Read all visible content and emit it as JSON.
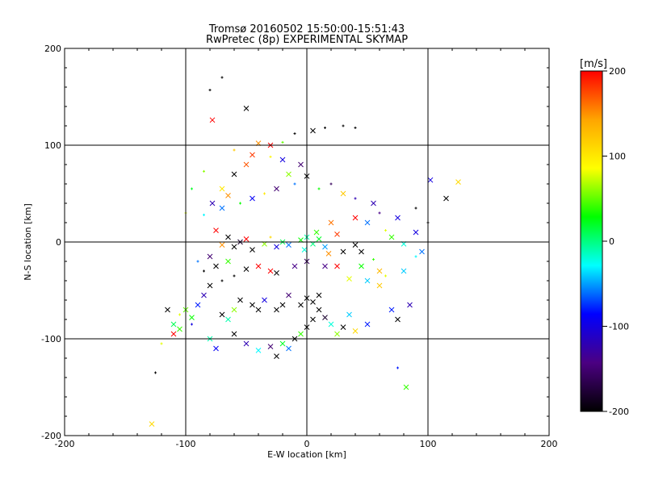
{
  "chart_data": {
    "type": "scatter",
    "title": "Tromsø 20160502 15:50:00-15:51:43",
    "subtitle": "RwPretec (8p) EXPERIMENTAL SKYMAP",
    "xlabel": "E-W location [km]",
    "ylabel": "N-S location [km]",
    "xlim": [
      -200,
      200
    ],
    "ylim": [
      -200,
      200
    ],
    "x_ticks": [
      "-200",
      "-100",
      "0",
      "100",
      "200"
    ],
    "y_ticks": [
      "-200",
      "-100",
      "0",
      "100",
      "200"
    ],
    "grid": true,
    "colorbar": {
      "label": "[m/s]",
      "range": [
        -200,
        200
      ],
      "ticks": [
        "200",
        "100",
        "0",
        "-100",
        "-200"
      ],
      "colors": [
        "#000000",
        "#4b0082",
        "#0000ff",
        "#00ffff",
        "#00ff00",
        "#ffff00",
        "#ffa500",
        "#ff0000"
      ]
    },
    "markers": {
      "cross": "x",
      "point": "+"
    },
    "points": [
      [
        -128,
        -188,
        "x",
        110
      ],
      [
        -80,
        157,
        "p",
        -200
      ],
      [
        -70,
        170,
        "p",
        -200
      ],
      [
        -50,
        138,
        "x",
        -200
      ],
      [
        -78,
        126,
        "x",
        200
      ],
      [
        5,
        115,
        "x",
        -200
      ],
      [
        15,
        118,
        "p",
        -200
      ],
      [
        30,
        120,
        "p",
        -200
      ],
      [
        40,
        118,
        "p",
        -200
      ],
      [
        -10,
        112,
        "p",
        -200
      ],
      [
        -40,
        102,
        "x",
        150
      ],
      [
        -30,
        100,
        "x",
        200
      ],
      [
        -20,
        103,
        "p",
        50
      ],
      [
        -60,
        95,
        "p",
        120
      ],
      [
        -45,
        90,
        "x",
        180
      ],
      [
        -5,
        80,
        "x",
        -150
      ],
      [
        0,
        68,
        "x",
        -200
      ],
      [
        -10,
        60,
        "p",
        -60
      ],
      [
        10,
        55,
        "p",
        30
      ],
      [
        40,
        45,
        "p",
        -120
      ],
      [
        55,
        40,
        "x",
        -120
      ],
      [
        60,
        30,
        "p",
        -140
      ],
      [
        75,
        25,
        "x",
        -100
      ],
      [
        90,
        35,
        "p",
        -200
      ],
      [
        102,
        64,
        "x",
        -100
      ],
      [
        125,
        62,
        "x",
        110
      ],
      [
        115,
        45,
        "x",
        -200
      ],
      [
        -85,
        73,
        "p",
        60
      ],
      [
        -78,
        40,
        "x",
        -120
      ],
      [
        -70,
        35,
        "x",
        -60
      ],
      [
        -95,
        55,
        "p",
        20
      ],
      [
        -100,
        30,
        "p",
        80
      ],
      [
        -85,
        28,
        "p",
        -30
      ],
      [
        -75,
        12,
        "x",
        200
      ],
      [
        -65,
        5,
        "x",
        -200
      ],
      [
        -60,
        -5,
        "x",
        -200
      ],
      [
        -55,
        0,
        "x",
        -180
      ],
      [
        -70,
        -3,
        "x",
        150
      ],
      [
        -50,
        3,
        "x",
        200
      ],
      [
        -45,
        -8,
        "x",
        -200
      ],
      [
        -35,
        -2,
        "x",
        60
      ],
      [
        -30,
        5,
        "p",
        110
      ],
      [
        -25,
        -5,
        "x",
        -100
      ],
      [
        -20,
        0,
        "x",
        10
      ],
      [
        -15,
        -3,
        "x",
        -60
      ],
      [
        -5,
        2,
        "x",
        30
      ],
      [
        0,
        5,
        "x",
        -10
      ],
      [
        5,
        -2,
        "x",
        0
      ],
      [
        10,
        3,
        "x",
        20
      ],
      [
        15,
        -5,
        "x",
        -50
      ],
      [
        -2,
        -8,
        "x",
        -20
      ],
      [
        8,
        10,
        "x",
        40
      ],
      [
        20,
        20,
        "x",
        160
      ],
      [
        25,
        8,
        "x",
        180
      ],
      [
        18,
        -12,
        "x",
        150
      ],
      [
        30,
        -10,
        "x",
        -200
      ],
      [
        40,
        -3,
        "x",
        -200
      ],
      [
        45,
        -10,
        "x",
        -200
      ],
      [
        55,
        -18,
        "p",
        40
      ],
      [
        60,
        -30,
        "x",
        130
      ],
      [
        50,
        -40,
        "x",
        -40
      ],
      [
        35,
        -38,
        "x",
        80
      ],
      [
        25,
        -25,
        "x",
        200
      ],
      [
        15,
        -25,
        "x",
        -140
      ],
      [
        0,
        -20,
        "x",
        -160
      ],
      [
        -10,
        -25,
        "x",
        -140
      ],
      [
        -25,
        -32,
        "x",
        -200
      ],
      [
        -30,
        -30,
        "x",
        200
      ],
      [
        -40,
        -25,
        "x",
        200
      ],
      [
        -50,
        -28,
        "x",
        -200
      ],
      [
        -60,
        -35,
        "p",
        -200
      ],
      [
        -70,
        -40,
        "p",
        -200
      ],
      [
        -80,
        -45,
        "x",
        -200
      ],
      [
        -85,
        -55,
        "x",
        -120
      ],
      [
        -90,
        -65,
        "x",
        -80
      ],
      [
        -100,
        -70,
        "x",
        50
      ],
      [
        -95,
        -85,
        "p",
        -100
      ],
      [
        -105,
        -90,
        "x",
        40
      ],
      [
        -110,
        -95,
        "x",
        200
      ],
      [
        -120,
        -105,
        "p",
        80
      ],
      [
        -125,
        -135,
        "p",
        -200
      ],
      [
        -80,
        -100,
        "x",
        -10
      ],
      [
        -75,
        -110,
        "x",
        -90
      ],
      [
        -60,
        -95,
        "x",
        -200
      ],
      [
        -50,
        -105,
        "x",
        -120
      ],
      [
        -40,
        -112,
        "x",
        -30
      ],
      [
        -30,
        -108,
        "x",
        -150
      ],
      [
        -25,
        -118,
        "x",
        -200
      ],
      [
        -20,
        -105,
        "x",
        20
      ],
      [
        -15,
        -110,
        "x",
        -60
      ],
      [
        -10,
        -100,
        "x",
        -200
      ],
      [
        -5,
        -95,
        "x",
        40
      ],
      [
        0,
        -88,
        "x",
        -200
      ],
      [
        5,
        -80,
        "x",
        -200
      ],
      [
        10,
        -70,
        "x",
        -200
      ],
      [
        15,
        -78,
        "x",
        -180
      ],
      [
        20,
        -85,
        "x",
        -20
      ],
      [
        25,
        -95,
        "x",
        60
      ],
      [
        30,
        -88,
        "x",
        -200
      ],
      [
        35,
        -75,
        "x",
        -40
      ],
      [
        40,
        -92,
        "x",
        110
      ],
      [
        50,
        -85,
        "x",
        -80
      ],
      [
        -5,
        -65,
        "x",
        -200
      ],
      [
        0,
        -58,
        "x",
        -200
      ],
      [
        5,
        -62,
        "x",
        -200
      ],
      [
        10,
        -55,
        "x",
        -200
      ],
      [
        -15,
        -55,
        "x",
        -150
      ],
      [
        -20,
        -65,
        "x",
        -200
      ],
      [
        -25,
        -70,
        "x",
        -200
      ],
      [
        -35,
        -60,
        "x",
        -100
      ],
      [
        -40,
        -70,
        "x",
        -200
      ],
      [
        -45,
        -65,
        "x",
        -200
      ],
      [
        -55,
        -60,
        "x",
        -200
      ],
      [
        -60,
        -70,
        "x",
        60
      ],
      [
        -65,
        -80,
        "x",
        -10
      ],
      [
        -70,
        -75,
        "x",
        -200
      ],
      [
        -95,
        -78,
        "x",
        30
      ],
      [
        -105,
        -75,
        "p",
        80
      ],
      [
        -110,
        -85,
        "x",
        10
      ],
      [
        -115,
        -70,
        "x",
        -200
      ],
      [
        70,
        -70,
        "x",
        -80
      ],
      [
        75,
        -80,
        "x",
        -200
      ],
      [
        85,
        -65,
        "x",
        -120
      ],
      [
        82,
        -150,
        "x",
        40
      ],
      [
        75,
        -130,
        "p",
        -80
      ],
      [
        -65,
        -20,
        "x",
        40
      ],
      [
        -75,
        -25,
        "x",
        -200
      ],
      [
        -80,
        -15,
        "x",
        -150
      ],
      [
        -85,
        -30,
        "p",
        -200
      ],
      [
        -90,
        -20,
        "p",
        -60
      ],
      [
        45,
        -25,
        "x",
        30
      ],
      [
        60,
        -45,
        "x",
        120
      ],
      [
        65,
        -35,
        "p",
        80
      ],
      [
        80,
        -30,
        "x",
        -40
      ],
      [
        90,
        -15,
        "p",
        -30
      ],
      [
        95,
        -10,
        "x",
        -60
      ],
      [
        -15,
        70,
        "x",
        60
      ],
      [
        -25,
        55,
        "x",
        -150
      ],
      [
        -35,
        50,
        "p",
        100
      ],
      [
        -45,
        45,
        "x",
        -90
      ],
      [
        -55,
        40,
        "p",
        30
      ],
      [
        -65,
        48,
        "x",
        150
      ],
      [
        -20,
        85,
        "x",
        -100
      ],
      [
        -30,
        88,
        "p",
        90
      ],
      [
        -50,
        80,
        "x",
        170
      ],
      [
        -60,
        70,
        "x",
        -200
      ],
      [
        -70,
        55,
        "x",
        100
      ],
      [
        20,
        60,
        "p",
        -160
      ],
      [
        30,
        50,
        "x",
        120
      ],
      [
        40,
        25,
        "x",
        200
      ],
      [
        50,
        20,
        "x",
        -60
      ],
      [
        65,
        12,
        "p",
        80
      ],
      [
        70,
        5,
        "x",
        40
      ],
      [
        80,
        -2,
        "x",
        -20
      ],
      [
        90,
        10,
        "x",
        -100
      ],
      [
        100,
        20,
        "p",
        -200
      ]
    ]
  }
}
